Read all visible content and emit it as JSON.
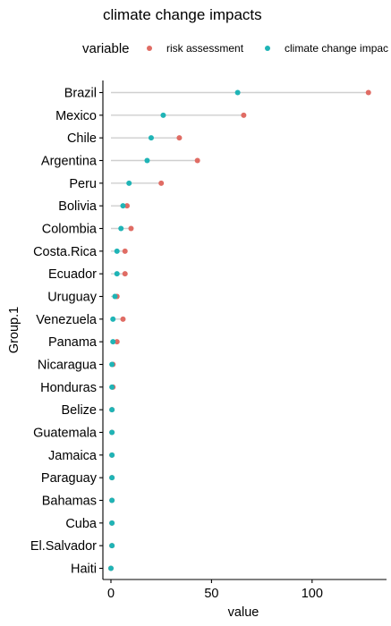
{
  "chart_data": {
    "type": "dot",
    "title": "climate change impacts",
    "xlabel": "value",
    "ylabel": "Group.1",
    "xlim": [
      -4,
      137
    ],
    "xticks": [
      0,
      50,
      100
    ],
    "legend": {
      "title": "variable",
      "position": "top"
    },
    "series_colors": {
      "risk assessment": "#E06C64",
      "climate change impacts": "#1FB4B6"
    },
    "categories": [
      "Brazil",
      "Mexico",
      "Chile",
      "Argentina",
      "Peru",
      "Bolivia",
      "Colombia",
      "Costa.Rica",
      "Ecuador",
      "Uruguay",
      "Venezuela",
      "Panama",
      "Nicaragua",
      "Honduras",
      "Belize",
      "Guatemala",
      "Jamaica",
      "Paraguay",
      "Bahamas",
      "Cuba",
      "El.Salvador",
      "Haiti"
    ],
    "series": [
      {
        "name": "risk assessment",
        "values": [
          128,
          66,
          34,
          43,
          25,
          8,
          10,
          7,
          7,
          3,
          6,
          3,
          1,
          1,
          0.5,
          0.5,
          0.5,
          0.5,
          0.5,
          0.5,
          0.5,
          0
        ]
      },
      {
        "name": "climate change impacts",
        "values": [
          63,
          26,
          20,
          18,
          9,
          6,
          5,
          3,
          3,
          2,
          1,
          1,
          0.5,
          0.5,
          0.5,
          0.5,
          0.5,
          0.5,
          0.5,
          0.5,
          0.5,
          0
        ]
      }
    ]
  },
  "legend_display": {
    "title": "variable",
    "labels": [
      "risk assessment",
      "climate change impac"
    ]
  }
}
